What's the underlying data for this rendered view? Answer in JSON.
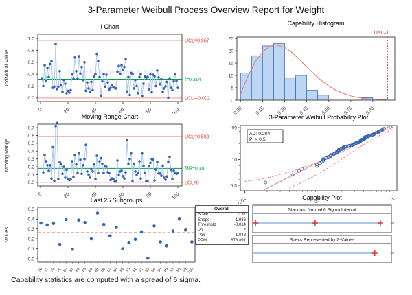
{
  "header": {
    "title": "3-Parameter Weibull Process Overview Report for Weight"
  },
  "footer": {
    "note": "Capability statistics are computed with a spread of 6 sigma."
  },
  "colors": {
    "point_blue": "#3465B4",
    "line_lightblue": "#A9C6EA",
    "bar_fill": "#BDD6F2",
    "bar_stroke": "#4472C4",
    "limit_red": "#F1A29C",
    "label_red": "#E8342A",
    "center_green": "#009E49",
    "curve_red": "#E97A72",
    "marker_red": "#E53935",
    "cap_line_blue": "#8FB6E6",
    "axis": "#4D4D4D",
    "tick_text": "#333333",
    "watermark_gray": "#DFDFDF"
  },
  "stats_table": {
    "header": "Overall",
    "rows": [
      {
        "label": "Scale",
        "value": "0.37"
      },
      {
        "label": "Shape",
        "value": "1.936"
      },
      {
        "label": "Threshold",
        "value": "-0.014"
      },
      {
        "label": "Pp",
        "value": "*"
      },
      {
        "label": "Ppk",
        "value": "1.043"
      },
      {
        "label": "PPM",
        "value": "873.891"
      }
    ]
  },
  "chart_data": [
    {
      "id": "i-chart",
      "type": "line",
      "title": "I Chart",
      "ylabel": "Individual Value",
      "watermark": "Double-click to open graph to edit",
      "xlim": [
        -2,
        103
      ],
      "ylim": [
        -0.06,
        1.07
      ],
      "x_ticks": [
        0,
        20,
        40,
        60,
        80,
        100
      ],
      "y_ticks": [
        0.0,
        0.2,
        0.4,
        0.6,
        0.8,
        1.0
      ],
      "y_decimals": 1,
      "control_lines": [
        {
          "value": 0.967,
          "label": "UCL=0.967",
          "color": "red"
        },
        {
          "value": 0.314,
          "label": "Ī=0.314",
          "color": "green"
        },
        {
          "value": -0.002,
          "label": "LCL=-0.002",
          "color": "red"
        }
      ],
      "values": [
        0.33,
        0.2,
        0.55,
        0.28,
        0.5,
        0.35,
        0.57,
        0.62,
        0.17,
        0.19,
        0.91,
        0.15,
        0.19,
        0.45,
        0.21,
        0.1,
        0.3,
        0.24,
        0.08,
        0.12,
        0.09,
        0.13,
        0.4,
        0.33,
        0.68,
        0.45,
        0.33,
        0.7,
        0.41,
        0.52,
        0.3,
        0.6,
        0.12,
        0.26,
        0.16,
        0.1,
        0.27,
        0.13,
        0.36,
        0.4,
        0.74,
        0.62,
        0.35,
        0.04,
        0.28,
        0.4,
        0.19,
        0.39,
        0.26,
        0.14,
        0.17,
        0.22,
        0.18,
        0.17,
        0.16,
        0.44,
        0.54,
        0.4,
        0.55,
        0.47,
        0.52,
        0.65,
        0.11,
        0.35,
        0.05,
        0.42,
        0.4,
        0.16,
        0.3,
        0.2,
        0.08,
        0.35,
        0.4,
        0.03,
        0.24,
        0.36,
        0.34,
        0.355,
        0.145,
        0.395,
        0.095,
        0.39,
        0.365,
        0.2,
        0.46,
        0.345,
        0.23,
        0.315,
        0.1,
        0.16,
        0.195,
        0.27,
        0.005,
        0.33,
        0.17,
        0.13,
        0.28,
        0.4,
        0.29,
        0.17
      ]
    },
    {
      "id": "mr-chart",
      "type": "line",
      "title": "Moving Range Chart",
      "ylabel": "Moving Range",
      "derive_moving_range_from": "i-chart",
      "xlim": [
        -2,
        103
      ],
      "ylim": [
        -0.045,
        0.745
      ],
      "x_ticks": [
        0,
        20,
        40,
        60,
        80,
        100
      ],
      "y_ticks": [
        0.0,
        0.1,
        0.2,
        0.3,
        0.4,
        0.5,
        0.6,
        0.7
      ],
      "y_decimals": 1,
      "control_lines": [
        {
          "value": 0.589,
          "label": "UCL=0.589",
          "color": "red"
        },
        {
          "value": 0.18,
          "label": "M̅R̅=0.18",
          "color": "green"
        },
        {
          "value": 0,
          "label": "LCL=0",
          "color": "red"
        }
      ]
    },
    {
      "id": "capability-histogram",
      "type": "histogram",
      "title": "Capability Histogram",
      "bin_start": 0,
      "bin_width": 0.075,
      "counts": [
        11,
        18,
        22,
        23,
        9,
        10,
        4,
        2,
        0,
        0,
        0,
        1
      ],
      "xlim": [
        -0.025,
        1.05
      ],
      "ylim": [
        0,
        25.6
      ],
      "x_ticks": [
        0,
        0.15,
        0.3,
        0.45,
        0.6,
        0.75,
        0.9
      ],
      "x_decimals": 2,
      "y_ticks": [
        0,
        5,
        10,
        15,
        20,
        25
      ],
      "usl": {
        "value": 1,
        "label": "USL=1"
      },
      "curve": [
        [
          0,
          2.4
        ],
        [
          0.05,
          9.7
        ],
        [
          0.1,
          15.5
        ],
        [
          0.15,
          19.6
        ],
        [
          0.2,
          21.9
        ],
        [
          0.24,
          22.4
        ],
        [
          0.3,
          21.4
        ],
        [
          0.35,
          19.3
        ],
        [
          0.4,
          16.5
        ],
        [
          0.45,
          13.5
        ],
        [
          0.5,
          10.6
        ],
        [
          0.55,
          8.0
        ],
        [
          0.6,
          5.8
        ],
        [
          0.65,
          4.0
        ],
        [
          0.7,
          2.7
        ],
        [
          0.75,
          1.7
        ],
        [
          0.8,
          1.1
        ],
        [
          0.85,
          0.65
        ],
        [
          0.9,
          0.38
        ],
        [
          0.95,
          0.21
        ],
        [
          1.0,
          0.12
        ]
      ]
    },
    {
      "id": "weibull-probability-plot",
      "type": "probability",
      "title": "3-Parameter Weibull Probability Plot",
      "stats_box": [
        "AD: 0.204",
        "P: > 0.5"
      ],
      "shape": 1.936,
      "scale": 0.37,
      "threshold": -0.014,
      "points_from": "i-chart",
      "x_ticks": [
        0.01,
        0.1,
        1
      ],
      "y_ticks": [
        99,
        10,
        0.5
      ],
      "y_minor_ticks": [
        95,
        50,
        20,
        5,
        2,
        1
      ],
      "loglim": [
        -2.06,
        0.05
      ],
      "wlim": [
        -5.95,
        1.78
      ],
      "band_upper": [
        [
          0.01,
          0.78
        ],
        [
          0.015,
          0.98
        ],
        [
          0.02,
          1.2
        ],
        [
          0.03,
          1.75
        ],
        [
          0.045,
          2.7
        ],
        [
          0.07,
          4.8
        ],
        [
          0.1,
          7.8
        ],
        [
          0.15,
          14
        ],
        [
          0.2,
          22
        ],
        [
          0.3,
          42
        ],
        [
          0.4,
          62
        ],
        [
          0.5,
          78
        ],
        [
          0.6,
          88
        ],
        [
          0.7,
          93.8
        ],
        [
          0.8,
          97
        ],
        [
          0.9,
          98.6
        ],
        [
          1.0,
          99.35
        ]
      ],
      "band_lower": [
        [
          0.04,
          0.37
        ],
        [
          0.06,
          0.72
        ],
        [
          0.08,
          1.3
        ],
        [
          0.1,
          2.0
        ],
        [
          0.15,
          5.0
        ],
        [
          0.2,
          10.2
        ],
        [
          0.3,
          26
        ],
        [
          0.4,
          46
        ],
        [
          0.5,
          64
        ],
        [
          0.6,
          78.5
        ],
        [
          0.7,
          87.5
        ],
        [
          0.8,
          93
        ],
        [
          0.9,
          96.3
        ],
        [
          1.0,
          98.0
        ]
      ]
    },
    {
      "id": "last-25-subgroups",
      "type": "scatter",
      "title": "Last 25 Subgroups",
      "ylabel": "Values",
      "categories": [
        76,
        77,
        78,
        79,
        80,
        81,
        82,
        83,
        84,
        85,
        86,
        87,
        88,
        89,
        90,
        91,
        92,
        93,
        94,
        95,
        96,
        97,
        98,
        99,
        100
      ],
      "values": [
        0.36,
        0.34,
        0.355,
        0.145,
        0.395,
        0.095,
        0.39,
        0.365,
        0.2,
        0.46,
        0.345,
        0.23,
        0.315,
        0.1,
        0.16,
        0.195,
        0.27,
        0.005,
        0.33,
        0.17,
        0.13,
        0.28,
        0.4,
        0.29,
        0.17
      ],
      "ylim": [
        -0.035,
        0.52
      ],
      "y_ticks": [
        0.0,
        0.1,
        0.2,
        0.3,
        0.4,
        0.5
      ],
      "y_decimals": 1,
      "mean_line": 0.265
    },
    {
      "id": "capability-plot",
      "type": "capability",
      "title": "Capability Plot",
      "panels": [
        {
          "label": "Standard Normal 6 Sigma Interval",
          "line": [
            0.02,
            0.92
          ],
          "markers": [
            0.02,
            0.45,
            0.92
          ]
        },
        {
          "label": "Specs Represented by Z-Values",
          "line": [
            0.0,
            0.88
          ],
          "markers": [
            0.88
          ]
        }
      ]
    }
  ]
}
